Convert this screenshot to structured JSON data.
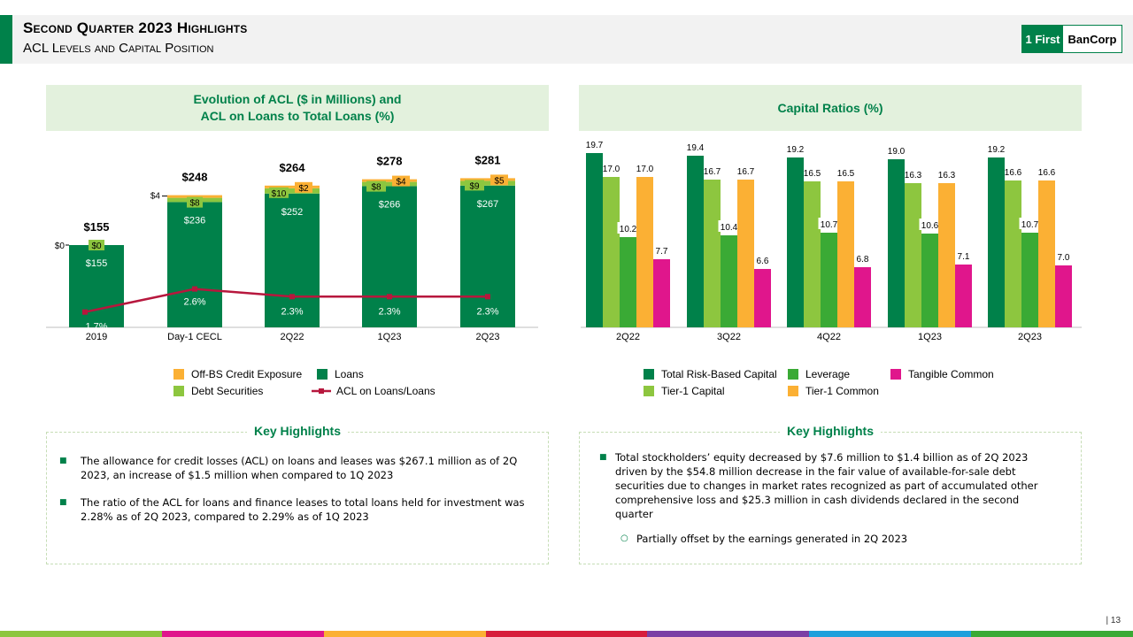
{
  "header": {
    "title": "Second Quarter 2023 Highlights",
    "subtitle": "ACL Levels and Capital Position",
    "logo_left": "1 First",
    "logo_right": "BanCorp"
  },
  "colors": {
    "dark_green": "#00814a",
    "light_green": "#8dc63f",
    "orange": "#fbb034",
    "magenta": "#e0168c",
    "crimson": "#b7173d",
    "debt_green": "#8dc63f"
  },
  "chart_data": [
    {
      "type": "bar",
      "title": "Evolution of ACL ($ in Millions) and ACL on Loans to Total Loans (%)",
      "title_line1": "Evolution of ACL ($ in Millions) and",
      "title_line2": "ACL on Loans to Total Loans (%)",
      "categories": [
        "2019",
        "Day-1  CECL",
        "2Q22",
        "1Q23",
        "2Q23"
      ],
      "series": [
        {
          "name": "Loans",
          "values": [
            155,
            236,
            252,
            266,
            267
          ],
          "labels": [
            "$155",
            "$236",
            "$252",
            "$266",
            "$267"
          ]
        },
        {
          "name": "Debt Securities",
          "values": [
            0,
            8,
            10,
            8,
            9
          ],
          "labels": [
            "$0",
            "$8",
            "$10",
            "$8",
            "$9"
          ]
        },
        {
          "name": "Off-BS Credit Exposure",
          "values": [
            0,
            4,
            2,
            4,
            5
          ],
          "labels": [
            "$0",
            "$4",
            "$2",
            "$4",
            "$5"
          ]
        }
      ],
      "totals": [
        "$155",
        "$248",
        "$264",
        "$278",
        "$281"
      ],
      "line": {
        "name": "ACL on Loans/Loans",
        "values": [
          1.7,
          2.6,
          2.3,
          2.3,
          2.3
        ],
        "labels": [
          "1.7%",
          "2.6%",
          "2.3%",
          "2.3%",
          "2.3%"
        ]
      },
      "legend": [
        "Off-BS Credit Exposure",
        "Loans",
        "Debt Securities",
        "ACL on Loans/Loans"
      ],
      "ylim": [
        0,
        300
      ]
    },
    {
      "type": "bar",
      "title": "Capital Ratios (%)",
      "categories": [
        "2Q22",
        "3Q22",
        "4Q22",
        "1Q23",
        "2Q23"
      ],
      "series": [
        {
          "name": "Total Risk-Based Capital",
          "values": [
            19.7,
            19.4,
            19.2,
            19.0,
            19.2
          ],
          "labels": [
            "19.7",
            "19.4",
            "19.2",
            "19.0",
            "19.2"
          ]
        },
        {
          "name": "Tier-1 Capital",
          "values": [
            17.0,
            16.7,
            16.5,
            16.3,
            16.6
          ],
          "labels": [
            "17.0",
            "16.7",
            "16.5",
            "16.3",
            "16.6"
          ]
        },
        {
          "name": "Leverage",
          "values": [
            10.2,
            10.4,
            10.7,
            10.6,
            10.7
          ],
          "labels": [
            "10.2",
            "10.4",
            "10.7",
            "10.6",
            "10.7"
          ]
        },
        {
          "name": "Tier-1 Common",
          "values": [
            17.0,
            16.7,
            16.5,
            16.3,
            16.6
          ],
          "labels": [
            "17.0",
            "16.7",
            "16.5",
            "16.3",
            "16.6"
          ]
        },
        {
          "name": "Tangible Common",
          "values": [
            7.7,
            6.6,
            6.8,
            7.1,
            7.0
          ],
          "labels": [
            "7.7",
            "6.6",
            "6.8",
            "7.1",
            "7.0"
          ]
        }
      ],
      "legend": [
        "Total Risk-Based Capital",
        "Leverage",
        "Tangible Common",
        "Tier-1 Capital",
        "Tier-1 Common"
      ],
      "ylim": [
        0,
        20
      ]
    }
  ],
  "left_highlights": {
    "title": "Key Highlights",
    "bullets": [
      "The allowance  for credit losses (ACL) on loans and leases was $267.1 million  as of 2Q 2023,  an increase of $1.5 million when  compared  to 1Q 2023",
      "The ratio of the ACL for loans and finance leases to total loans held for investment was 2.28% as of 2Q 2023, compared  to 2.29% as of 1Q 2023"
    ]
  },
  "right_highlights": {
    "title": "Key Highlights",
    "bullets": [
      "Total stockholders’ equity decreased by $7.6 million to $1.4 billion  as of 2Q 2023 driven by the $54.8 million  decrease in the fair value of available-for-sale  debt securities due  to changes in market rates recognized  as part of accumulated  other comprehensive loss and $25.3 million  in cash dividends declared  in the second quarter"
    ],
    "sub_bullets": [
      "Partially  offset by the earnings generated  in 2Q 2023"
    ]
  },
  "footer": {
    "page": "| 13"
  }
}
